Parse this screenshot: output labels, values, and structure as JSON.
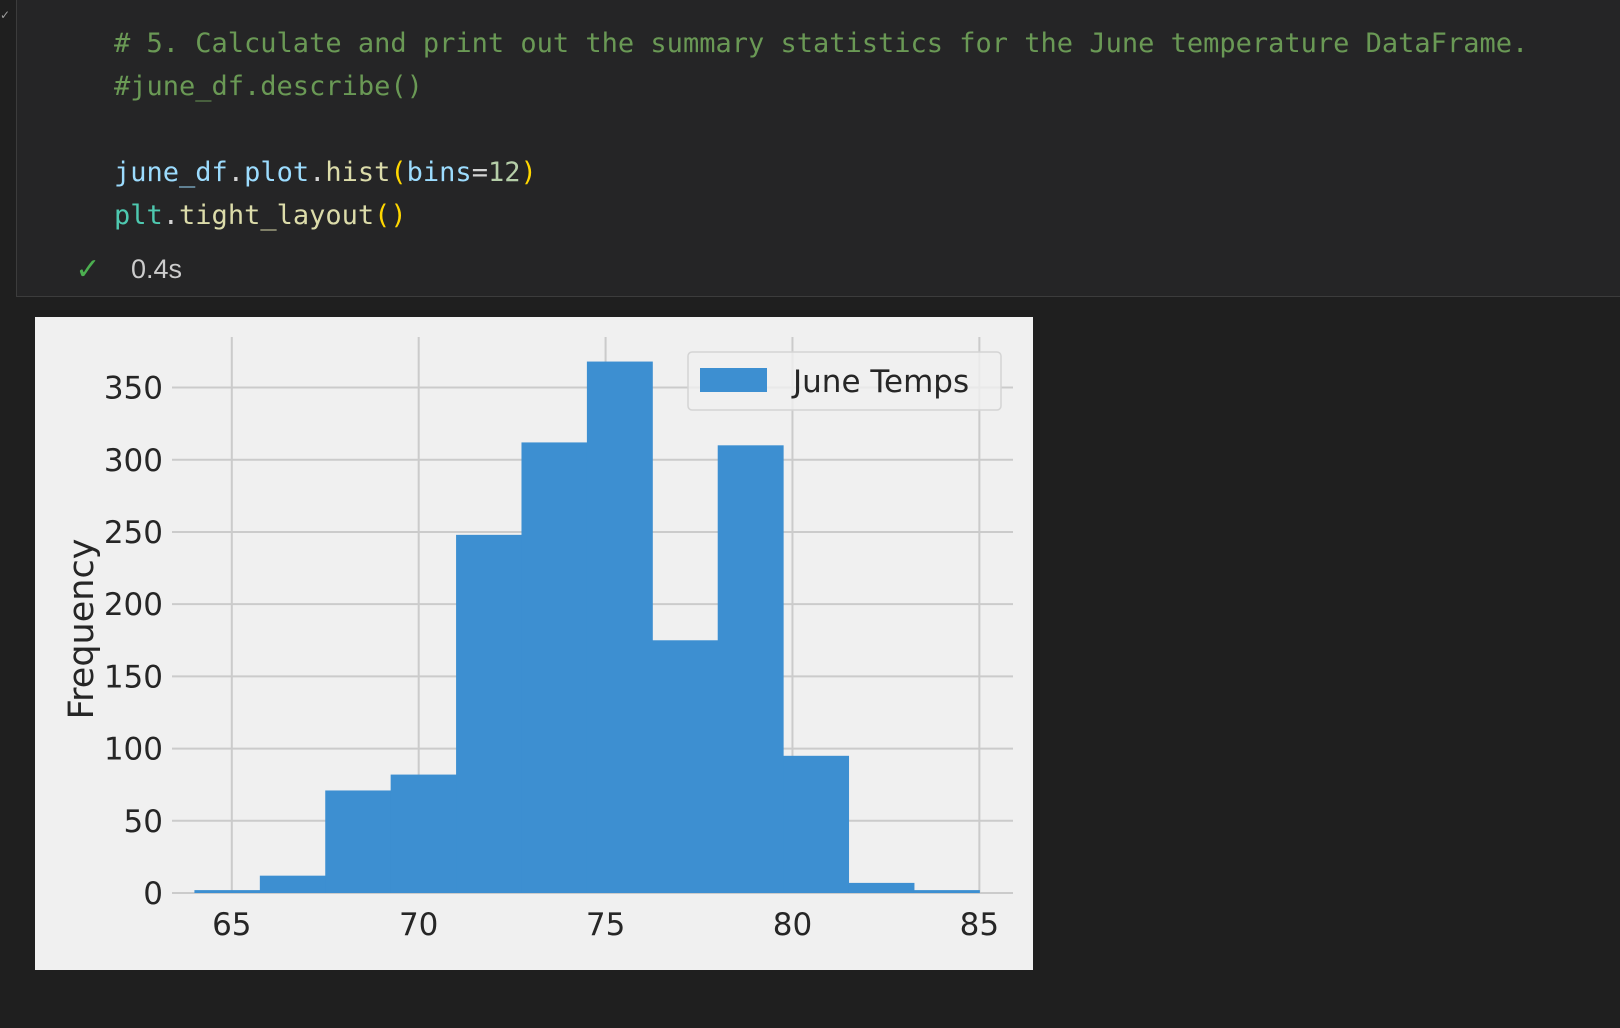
{
  "cell": {
    "code_lines": [
      [
        {
          "t": "# 5. Calculate and print out the summary statistics for the June temperature DataFrame.",
          "c": "comment"
        }
      ],
      [
        {
          "t": "#june_df.describe()",
          "c": "comment"
        }
      ],
      [],
      [
        {
          "t": "june_df",
          "c": "var"
        },
        {
          "t": ".",
          "c": "op"
        },
        {
          "t": "plot",
          "c": "var"
        },
        {
          "t": ".",
          "c": "op"
        },
        {
          "t": "hist",
          "c": "fn"
        },
        {
          "t": "(",
          "c": "paren"
        },
        {
          "t": "bins",
          "c": "var"
        },
        {
          "t": "=",
          "c": "op"
        },
        {
          "t": "12",
          "c": "num"
        },
        {
          "t": ")",
          "c": "paren"
        }
      ],
      [
        {
          "t": "plt",
          "c": "mod"
        },
        {
          "t": ".",
          "c": "op"
        },
        {
          "t": "tight_layout",
          "c": "fn"
        },
        {
          "t": "()",
          "c": "paren"
        }
      ]
    ],
    "status": {
      "icon": "check-icon",
      "duration": "0.4s"
    },
    "edge_mark": "✓"
  },
  "colors": {
    "bar": "#3d8fd1",
    "plot_bg": "#f0f0f0",
    "grid": "#cbcbcb"
  },
  "chart_data": {
    "type": "bar",
    "title": "",
    "xlabel": "",
    "ylabel": "Frequency",
    "xlim": [
      63.4,
      85.9
    ],
    "ylim": [
      0,
      385
    ],
    "x_ticks": [
      65,
      70,
      75,
      80,
      85
    ],
    "y_ticks": [
      0,
      50,
      100,
      150,
      200,
      250,
      300,
      350
    ],
    "grid": true,
    "legend": {
      "position": "top-right",
      "entries": [
        "June Temps"
      ]
    },
    "series": [
      {
        "name": "June Temps",
        "bins": [
          {
            "start": 64.0,
            "end": 65.75,
            "value": 2
          },
          {
            "start": 65.75,
            "end": 67.5,
            "value": 12
          },
          {
            "start": 67.5,
            "end": 69.25,
            "value": 71
          },
          {
            "start": 69.25,
            "end": 71.0,
            "value": 82
          },
          {
            "start": 71.0,
            "end": 72.75,
            "value": 248
          },
          {
            "start": 72.75,
            "end": 74.5,
            "value": 312
          },
          {
            "start": 74.5,
            "end": 76.25,
            "value": 368
          },
          {
            "start": 76.25,
            "end": 78.0,
            "value": 175
          },
          {
            "start": 78.0,
            "end": 79.75,
            "value": 310
          },
          {
            "start": 79.75,
            "end": 81.5,
            "value": 95
          },
          {
            "start": 81.5,
            "end": 83.25,
            "value": 7
          },
          {
            "start": 83.25,
            "end": 85.0,
            "value": 2
          }
        ]
      }
    ]
  }
}
